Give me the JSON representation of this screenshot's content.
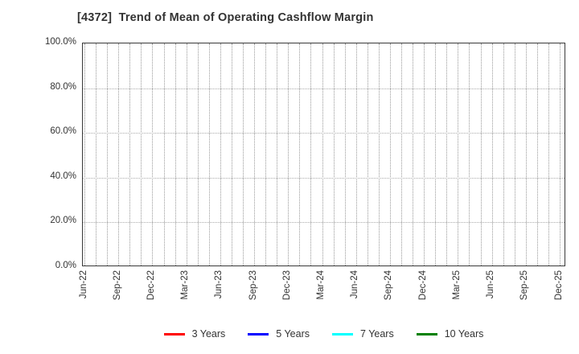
{
  "chart_data": {
    "type": "line",
    "title": "[4372]  Trend of Mean of Operating Cashflow Margin",
    "xlabel": "",
    "ylabel": "",
    "ylim": [
      0,
      100
    ],
    "grid": true,
    "legend_position": "bottom",
    "x_tick_labels": [
      "Jun-22",
      "Sep-22",
      "Dec-22",
      "Mar-23",
      "Jun-23",
      "Sep-23",
      "Dec-23",
      "Mar-24",
      "Jun-24",
      "Sep-24",
      "Dec-24",
      "Mar-25",
      "Jun-25",
      "Sep-25",
      "Dec-25"
    ],
    "x_minor_gridlines_per_label_interval": 3,
    "y_tick_values": [
      0,
      20,
      40,
      60,
      80,
      100
    ],
    "y_tick_labels": [
      "0.0%",
      "20.0%",
      "40.0%",
      "60.0%",
      "80.0%",
      "100.0%"
    ],
    "series": [
      {
        "name": "3 Years",
        "color": "#ff0000",
        "x": [],
        "values": []
      },
      {
        "name": "5 Years",
        "color": "#0000ff",
        "x": [],
        "values": []
      },
      {
        "name": "7 Years",
        "color": "#00ffff",
        "x": [],
        "values": []
      },
      {
        "name": "10 Years",
        "color": "#008000",
        "x": [],
        "values": []
      }
    ]
  },
  "colors": {
    "title_text": "#333333",
    "axis_text": "#333333",
    "plot_border": "#3a3a3a",
    "grid_vertical": "#999999",
    "grid_horizontal": "#aaaaaa",
    "background": "#ffffff"
  }
}
